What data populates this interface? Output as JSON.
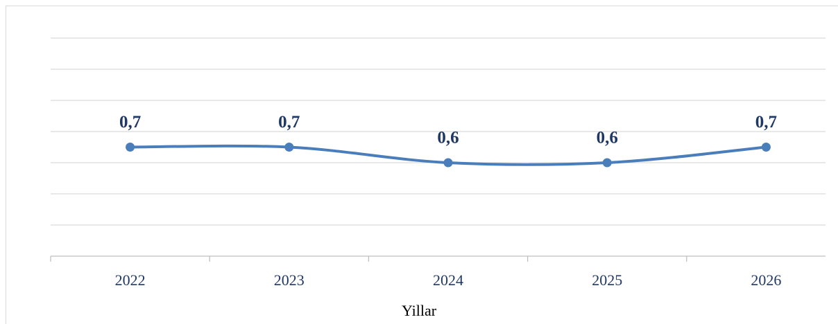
{
  "chart_data": {
    "type": "line",
    "x_label": "Yillar",
    "categories": [
      "2022",
      "2023",
      "2024",
      "2025",
      "2026"
    ],
    "values": [
      0.7,
      0.7,
      0.6,
      0.6,
      0.7
    ],
    "value_labels": [
      "0,7",
      "0,7",
      "0,6",
      "0,6",
      "0,7"
    ],
    "color": "#4a7ebb",
    "ylim": [
      0,
      1.4
    ],
    "yticks": [
      0,
      0.2,
      0.4,
      0.6,
      0.8,
      1.0,
      1.2,
      1.4
    ],
    "grid": true,
    "smooth": true
  }
}
